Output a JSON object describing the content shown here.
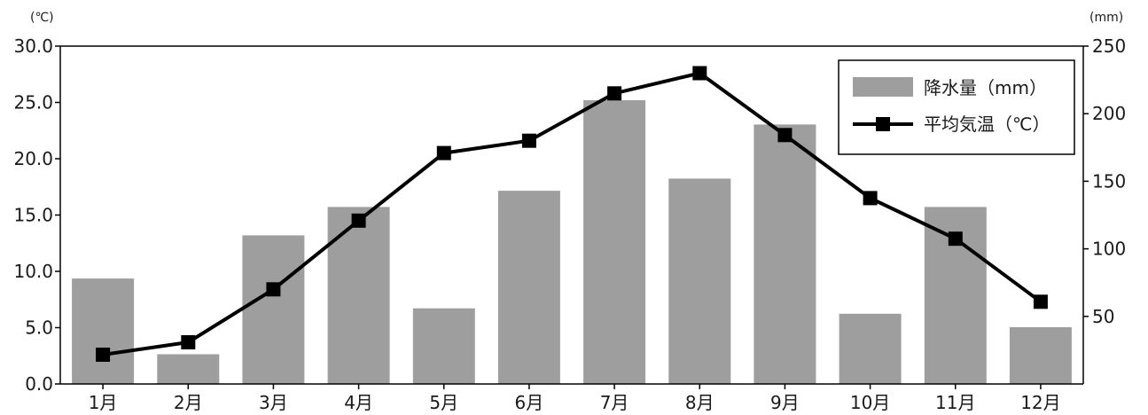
{
  "chart_data": {
    "type": "bar",
    "combo": "bar+line",
    "categories": [
      "1月",
      "2月",
      "3月",
      "4月",
      "5月",
      "6月",
      "7月",
      "8月",
      "9月",
      "10月",
      "11月",
      "12月"
    ],
    "series": [
      {
        "name": "降水量（mm）",
        "type": "bar",
        "axis": "right",
        "color": "#9e9e9e",
        "values": [
          78,
          22,
          110,
          131,
          56,
          143,
          210,
          152,
          192,
          52,
          131,
          42
        ]
      },
      {
        "name": "平均気温（℃）",
        "type": "line",
        "axis": "left",
        "color": "#000000",
        "marker": "square",
        "values": [
          2.6,
          3.7,
          8.4,
          14.5,
          20.5,
          21.6,
          25.8,
          27.6,
          22.1,
          16.5,
          12.9,
          7.3
        ]
      }
    ],
    "left_axis": {
      "unit": "(℃)",
      "ylim": [
        0,
        30
      ],
      "ticks": [
        "0.0",
        "5.0",
        "10.0",
        "15.0",
        "20.0",
        "25.0",
        "30.0"
      ]
    },
    "right_axis": {
      "unit": "(mm)",
      "ylim": [
        0,
        250
      ],
      "ticks": [
        "50",
        "100",
        "150",
        "200",
        "250"
      ]
    },
    "grid": false,
    "legend": "top-right"
  }
}
